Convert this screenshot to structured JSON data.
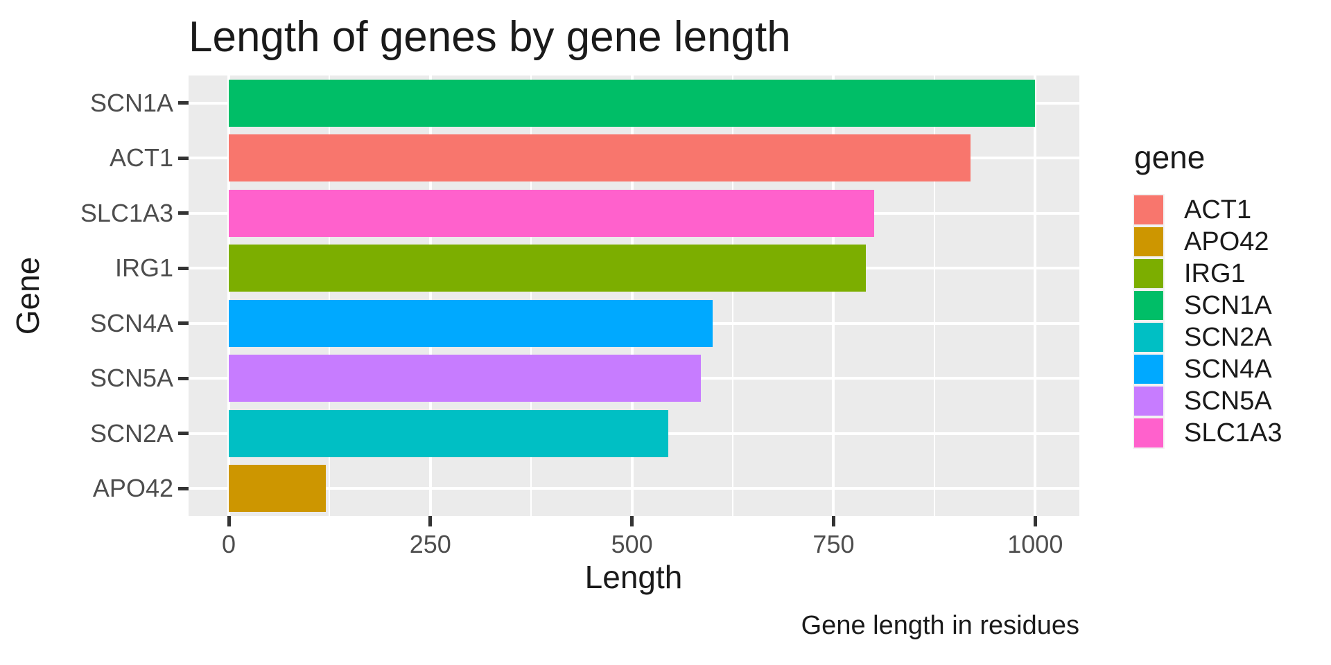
{
  "chart_data": {
    "type": "bar",
    "orientation": "horizontal",
    "title": "Length of genes by gene length",
    "xlabel": "Length",
    "ylabel": "Gene",
    "caption": "Gene length in residues",
    "categories": [
      "SCN1A",
      "ACT1",
      "SLC1A3",
      "IRG1",
      "SCN4A",
      "SCN5A",
      "SCN2A",
      "APO42"
    ],
    "values": [
      1000,
      920,
      800,
      790,
      600,
      585,
      545,
      120
    ],
    "xlim": [
      0,
      1000
    ],
    "x_major_ticks": [
      0,
      250,
      500,
      750,
      1000
    ],
    "x_major_tick_labels": [
      "0",
      "250",
      "500",
      "750",
      "1000"
    ],
    "x_minor_gridlines": [
      125,
      375,
      625,
      875
    ],
    "grid": "white lines on gray panel",
    "legend_position": "right",
    "legend": {
      "title": "gene",
      "entries": [
        {
          "label": "ACT1",
          "color": "#F8766D"
        },
        {
          "label": "APO42",
          "color": "#CD9600"
        },
        {
          "label": "IRG1",
          "color": "#7CAE00"
        },
        {
          "label": "SCN1A",
          "color": "#00BE67"
        },
        {
          "label": "SCN2A",
          "color": "#00BFC4"
        },
        {
          "label": "SCN4A",
          "color": "#00A9FF"
        },
        {
          "label": "SCN5A",
          "color": "#C77CFF"
        },
        {
          "label": "SLC1A3",
          "color": "#FF61CC"
        }
      ]
    },
    "colors": {
      "panel_background": "#EBEBEB",
      "gridline": "#FFFFFF",
      "axis_text": "#4D4D4D",
      "tick_mark": "#333333",
      "title_text": "#1A1A1A"
    }
  }
}
